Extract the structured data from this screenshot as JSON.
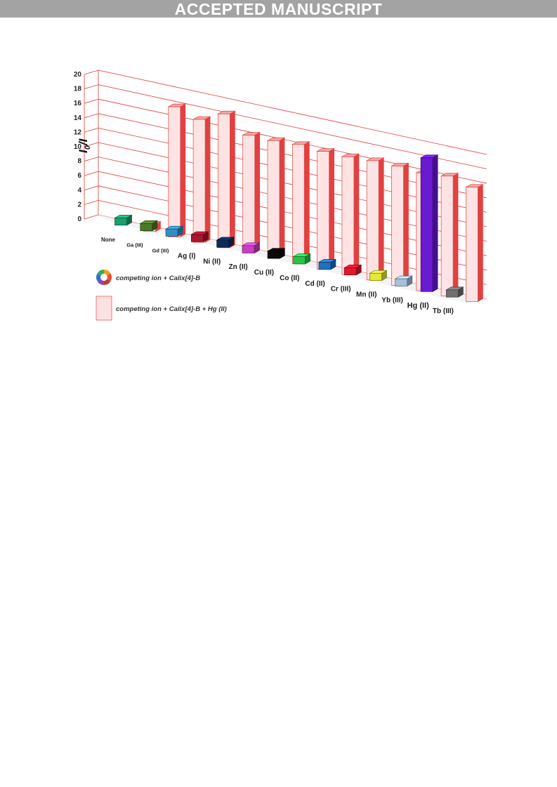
{
  "banner": {
    "text": "ACCEPTED MANUSCRIPT"
  },
  "chart_data": {
    "type": "bar",
    "ylabel": "I0/I",
    "ylim": [
      0,
      20
    ],
    "yticks": [
      0,
      2,
      4,
      6,
      8,
      10,
      12,
      14,
      16,
      18,
      20
    ],
    "grid": true,
    "categories": [
      "None",
      "Ga (III)",
      "Gd (III)",
      "Ag (I)",
      "Ni (II)",
      "Zn (II)",
      "Cu (II)",
      "Co (II)",
      "Cd (II)",
      "Cr (III)",
      "Mn (II)",
      "Yb (III)",
      "Hg (II)",
      "Tb (III)"
    ],
    "series": [
      {
        "name": "competing ion + Calix[4]-B",
        "values": [
          1,
          1,
          1,
          1,
          1,
          1,
          1,
          1,
          1,
          1,
          1,
          1,
          18.5,
          1
        ],
        "colors": [
          "#19a06e",
          "#4a7a26",
          "#2f8fc5",
          "#a8162f",
          "#0e2a5a",
          "#c83fc6",
          "#0a0a0a",
          "#29c24a",
          "#1f6fc2",
          "#e1182c",
          "#e6e636",
          "#a6bfdc",
          "#6a1ad0",
          "#6f6f6f"
        ]
      },
      {
        "name": "competing ion + Calix[4]-B + Hg (II)",
        "values": [
          1,
          18,
          17,
          18.5,
          16.3,
          16.3,
          16.5,
          16.3,
          16.3,
          16.5,
          16.5,
          16.3,
          16.6,
          15.8
        ],
        "color": "#f9c9c9"
      }
    ],
    "legend_position": "bottom-left"
  },
  "legend": {
    "items": [
      {
        "label": "competing ion + Calix[4]-B",
        "icon": "color-wheel-icon"
      },
      {
        "label": "competing ion + Calix[4]-B + Hg (II)",
        "icon": "pink-swatch-icon"
      }
    ]
  }
}
